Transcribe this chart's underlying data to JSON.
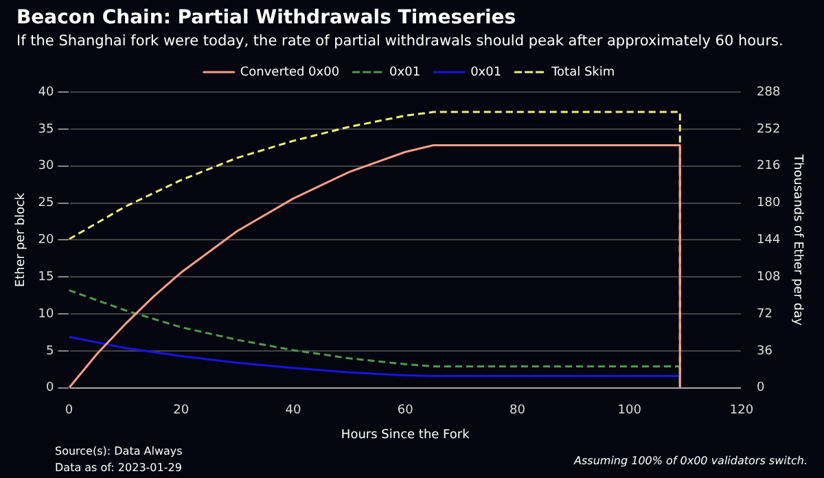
{
  "chart_data": {
    "type": "line",
    "title": "Beacon Chain: Partial Withdrawals Timeseries",
    "subtitle": "If the Shanghai fork were today, the rate of partial withdrawals should peak after approximately 60 hours.",
    "xlabel": "Hours Since the Fork",
    "ylabel": "Ether per block",
    "y2label": "Thousands of Ether per day",
    "annotations": [
      "Source(s): Data Always",
      "Data as of: 2023-01-29",
      "Assuming 100% of 0x00 validators switch."
    ],
    "series": [
      {
        "name": "Converted 0x00",
        "color": "#f4a08a",
        "line_style": "solid",
        "x": [
          0,
          5,
          10,
          15,
          20,
          30,
          40,
          50,
          60,
          65,
          109,
          109
        ],
        "values": [
          0,
          4.6,
          8.6,
          12.3,
          15.6,
          21.2,
          25.6,
          29.2,
          31.9,
          32.8,
          32.8,
          0
        ]
      },
      {
        "name": "0x01",
        "color": "#4e9a4e",
        "line_style": "dashed",
        "x": [
          0,
          10,
          20,
          30,
          40,
          50,
          60,
          65,
          109,
          109
        ],
        "values": [
          13.2,
          10.5,
          8.2,
          6.5,
          5.1,
          4.0,
          3.2,
          2.9,
          2.9,
          0
        ]
      },
      {
        "name": "0x01",
        "color": "#1414e6",
        "line_style": "solid",
        "x": [
          0,
          10,
          20,
          30,
          40,
          50,
          60,
          65,
          109,
          109
        ],
        "values": [
          6.9,
          5.4,
          4.3,
          3.4,
          2.7,
          2.1,
          1.7,
          1.6,
          1.6,
          0
        ]
      },
      {
        "name": "Total Skim",
        "color": "#eef07a",
        "line_style": "dashed",
        "x": [
          0,
          10,
          20,
          30,
          40,
          50,
          60,
          65,
          109,
          109
        ],
        "values": [
          20.1,
          24.5,
          28.1,
          31.1,
          33.4,
          35.3,
          36.8,
          37.3,
          37.3,
          0
        ]
      }
    ],
    "xlim": [
      0,
      120
    ],
    "xticks": [
      0,
      20,
      40,
      60,
      80,
      100,
      120
    ],
    "ylim": [
      0,
      40
    ],
    "yticks": [
      0,
      5,
      10,
      15,
      20,
      25,
      30,
      35,
      40
    ],
    "y2lim": [
      0,
      288
    ],
    "y2ticks": [
      0,
      36,
      72,
      108,
      144,
      180,
      216,
      252,
      288
    ],
    "grid": "y",
    "legend": "top",
    "marker": "none"
  }
}
